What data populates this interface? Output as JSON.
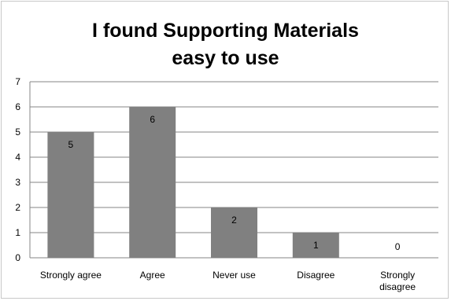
{
  "chart_data": {
    "type": "bar",
    "title_lines": [
      "I found Supporting Materials",
      "easy to use"
    ],
    "categories": [
      [
        "Strongly agree"
      ],
      [
        "Agree"
      ],
      [
        "Never use"
      ],
      [
        "Disagree"
      ],
      [
        "Strongly",
        "disagree"
      ]
    ],
    "values": [
      5,
      6,
      2,
      1,
      0
    ],
    "ylim": [
      0,
      7
    ],
    "yticks": [
      0,
      1,
      2,
      3,
      4,
      5,
      6,
      7
    ],
    "grid": true,
    "legend": "none",
    "bar_color": "#808080",
    "grid_color": "#868686",
    "xlabel": "",
    "ylabel": ""
  }
}
